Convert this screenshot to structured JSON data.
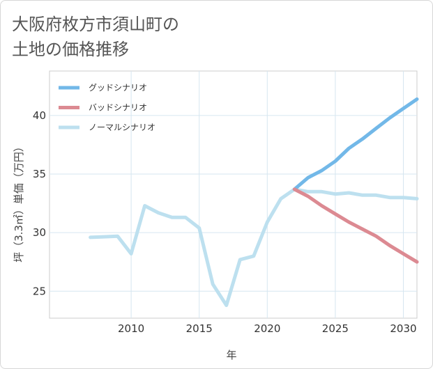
{
  "title_lines": [
    "大阪府枚方市須山町の",
    "土地の価格推移"
  ],
  "chart_data": {
    "type": "line",
    "xlabel": "年",
    "ylabel": "坪（3.3㎡）単価（万円）",
    "xlim": [
      2004,
      2031
    ],
    "ylim": [
      22.7,
      43.8
    ],
    "xticks": [
      2010,
      2015,
      2020,
      2025,
      2030
    ],
    "yticks": [
      25,
      30,
      35,
      40
    ],
    "xtick_labels": [
      "2010",
      "2015",
      "2020",
      "2025",
      "2030"
    ],
    "ytick_labels": [
      "25",
      "30",
      "35",
      "40"
    ],
    "grid": true,
    "legend_position": "top-left",
    "series": [
      {
        "name": "グッドシナリオ",
        "color": "#72b8e8",
        "points": [
          [
            2022,
            33.7
          ],
          [
            2023,
            34.7
          ],
          [
            2024,
            35.3
          ],
          [
            2025,
            36.1
          ],
          [
            2026,
            37.2
          ],
          [
            2027,
            38.0
          ],
          [
            2028,
            38.9
          ],
          [
            2029,
            39.8
          ],
          [
            2030,
            40.6
          ],
          [
            2031,
            41.4
          ]
        ]
      },
      {
        "name": "バッドシナリオ",
        "color": "#dc8a92",
        "points": [
          [
            2022,
            33.7
          ],
          [
            2023,
            33.1
          ],
          [
            2024,
            32.3
          ],
          [
            2025,
            31.6
          ],
          [
            2026,
            30.9
          ],
          [
            2027,
            30.3
          ],
          [
            2028,
            29.7
          ],
          [
            2029,
            28.9
          ],
          [
            2030,
            28.2
          ],
          [
            2031,
            27.5
          ]
        ]
      },
      {
        "name": "ノーマルシナリオ",
        "color": "#bde0ef",
        "points": [
          [
            2007,
            29.6
          ],
          [
            2008,
            29.65
          ],
          [
            2009,
            29.7
          ],
          [
            2010,
            28.2
          ],
          [
            2011,
            32.3
          ],
          [
            2012,
            31.7
          ],
          [
            2013,
            31.3
          ],
          [
            2014,
            31.3
          ],
          [
            2015,
            30.4
          ],
          [
            2016,
            25.6
          ],
          [
            2017,
            23.8
          ],
          [
            2018,
            27.7
          ],
          [
            2019,
            28.0
          ],
          [
            2020,
            30.9
          ],
          [
            2021,
            32.9
          ],
          [
            2022,
            33.7
          ],
          [
            2023,
            33.5
          ],
          [
            2024,
            33.5
          ],
          [
            2025,
            33.3
          ],
          [
            2026,
            33.4
          ],
          [
            2027,
            33.2
          ],
          [
            2028,
            33.2
          ],
          [
            2029,
            33.0
          ],
          [
            2030,
            33.0
          ],
          [
            2031,
            32.9
          ]
        ]
      }
    ]
  }
}
